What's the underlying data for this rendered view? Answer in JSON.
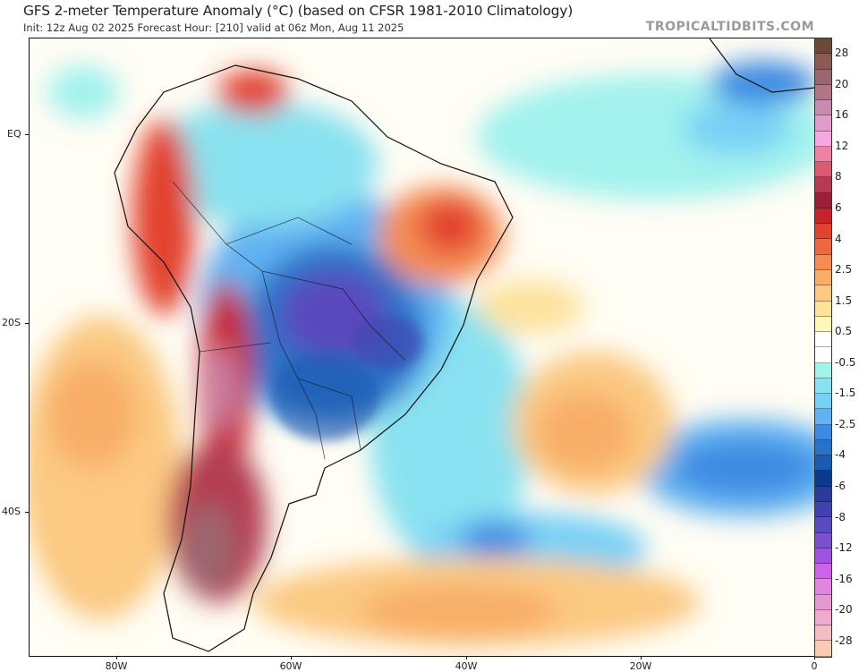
{
  "header": {
    "title": "GFS 2-meter Temperature Anomaly (°C) (based on CFSR 1981-2010 Climatology)",
    "subtitle": "Init: 12z Aug 02 2025   Forecast Hour: [210]   valid at 06z Mon, Aug 11 2025",
    "watermark": "TROPICALTIDBITS.COM"
  },
  "axes": {
    "lat_labels": [
      "EQ",
      "20S",
      "40S"
    ],
    "lon_labels": [
      "80W",
      "60W",
      "40W",
      "20W",
      "0"
    ]
  },
  "colorbar": {
    "labels": [
      "28",
      "20",
      "16",
      "12",
      "8",
      "6",
      "4",
      "2.5",
      "1.5",
      "0.5",
      "-0.5",
      "-1.5",
      "-2.5",
      "-4",
      "-6",
      "-8",
      "-12",
      "-16",
      "-20",
      "-28"
    ],
    "colors": [
      "#6b4a3a",
      "#8a5a54",
      "#9c6670",
      "#b07688",
      "#c98ab0",
      "#e19ccc",
      "#f6a8e4",
      "#ee82a4",
      "#da5a70",
      "#b43c52",
      "#9a2036",
      "#c8222a",
      "#e2422e",
      "#ee6642",
      "#f58c52",
      "#f8ae68",
      "#fbc982",
      "#fde29c",
      "#fff6bc",
      "#ffffff",
      "#ffffff",
      "#a2f2ee",
      "#8ae2f0",
      "#78d0f6",
      "#60b2f2",
      "#3c8ae2",
      "#2a72c8",
      "#1a5ab0",
      "#0a3a8a",
      "#283c9a",
      "#4042ae",
      "#5a4abe",
      "#7e50d0",
      "#a052e0",
      "#d062ea",
      "#e284e0",
      "#e49ad0",
      "#f0aad0",
      "#f6bcc4",
      "#f9ccb2"
    ]
  }
}
